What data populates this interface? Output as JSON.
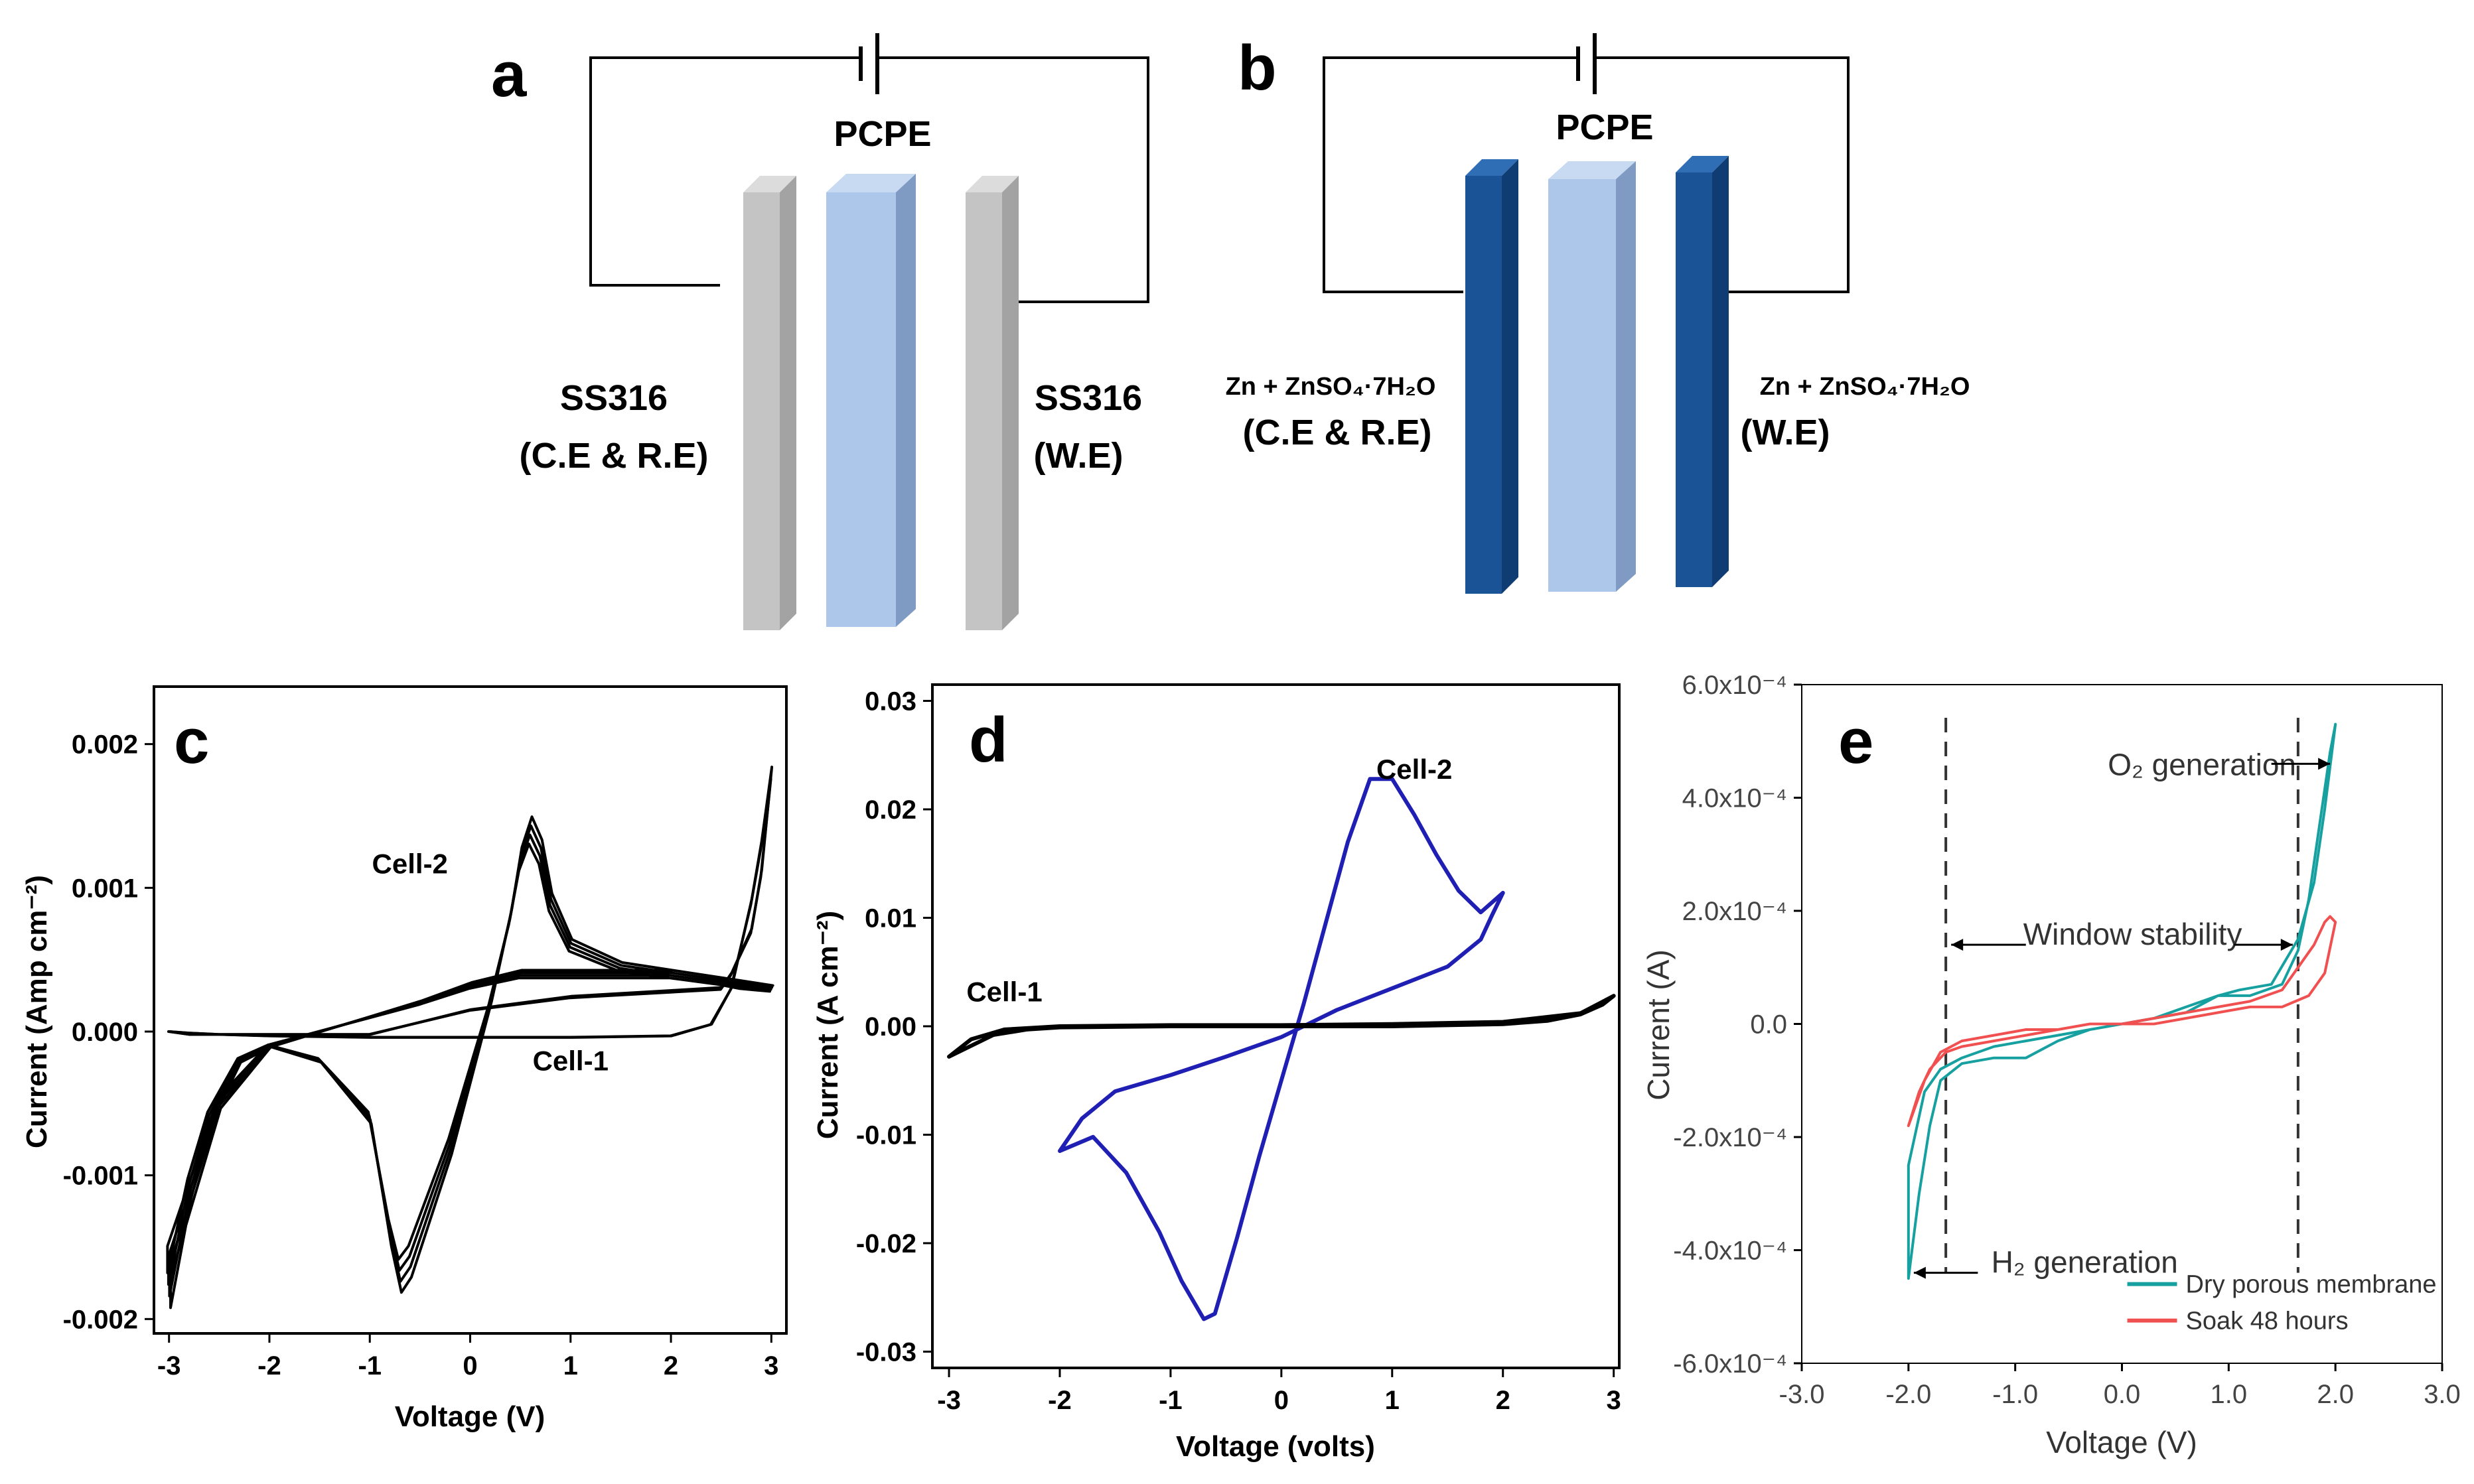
{
  "panels": {
    "a": {
      "letter": "a",
      "electrolyte_label": "PCPE",
      "left_label": [
        "SS316",
        "(C.E & R.E)"
      ],
      "right_label": [
        "SS316",
        "(W.E)"
      ],
      "electrode_color": "#c0c0c0",
      "electrolyte_color": "#a9c4e8"
    },
    "b": {
      "letter": "b",
      "electrolyte_label": "PCPE",
      "left_label": [
        "Zn + ZnSO₄·7H₂O",
        "(C.E & R.E)"
      ],
      "right_label": [
        "Zn + ZnSO₄·7H₂O",
        "(W.E)"
      ],
      "electrode_color": "#1b5496",
      "electrolyte_color": "#a9c4e8"
    }
  },
  "chart_data": [
    {
      "panel": "c",
      "letter": "c",
      "type": "line",
      "title": "",
      "xlabel": "Voltage (V)",
      "ylabel": "Current (Amp cm⁻²)",
      "xlim": [
        -3.15,
        3.15
      ],
      "ylim": [
        -0.0021,
        0.0024
      ],
      "xticks": [
        -3,
        -2,
        -1,
        0,
        1,
        2,
        3
      ],
      "xtick_labels": [
        "-3",
        "-2",
        "-1",
        "0",
        "1",
        "2",
        "3"
      ],
      "yticks": [
        -0.002,
        -0.001,
        0.0,
        0.001,
        0.002
      ],
      "ytick_labels": [
        "-0.002",
        "-0.001",
        "0.000",
        "0.001",
        "0.002"
      ],
      "color": "#000000",
      "annotations": [
        {
          "text": "Cell-2",
          "x": -0.6,
          "y": 0.0011
        },
        {
          "text": "Cell-1",
          "x": 1.0,
          "y": -0.00027
        }
      ],
      "series": [
        {
          "name": "Cell-2",
          "cycles": 4,
          "x": [
            -3.0,
            -2.5,
            -2.0,
            -1.5,
            -1.0,
            -0.8,
            -0.7,
            -0.6,
            -0.4,
            -0.2,
            0.0,
            0.2,
            0.3,
            0.4,
            0.5,
            0.6,
            0.7,
            0.8,
            1.0,
            1.5,
            2.0,
            2.5,
            3.0,
            2.7,
            2.5,
            2.0,
            1.5,
            1.0,
            0.5,
            0.0,
            -0.5,
            -1.0,
            -1.5,
            -2.0,
            -2.3,
            -2.6,
            -2.8,
            -3.0
          ],
          "y": [
            -0.0016,
            -0.0005,
            -0.0001,
            -0.0002,
            -0.0006,
            -0.0014,
            -0.0017,
            -0.0016,
            -0.0012,
            -0.0008,
            -0.0003,
            0.0002,
            0.0005,
            0.0008,
            0.0012,
            0.0014,
            0.00125,
            0.0009,
            0.0006,
            0.00045,
            0.0004,
            0.00035,
            0.0003,
            0.00032,
            0.00035,
            0.0004,
            0.0004,
            0.0004,
            0.0004,
            0.00032,
            0.0002,
            0.0001,
            0.0,
            -0.0001,
            -0.0002,
            -0.0006,
            -0.0011,
            -0.0018
          ]
        },
        {
          "name": "Cell-1",
          "cycles": 2,
          "x": [
            -3.0,
            -2.8,
            -2.5,
            -2.0,
            -1.0,
            0.0,
            1.0,
            2.0,
            2.4,
            2.6,
            2.8,
            2.9,
            3.0,
            2.9,
            2.8,
            2.6,
            2.5,
            2.0,
            1.0,
            0.0,
            -1.0,
            -2.0,
            -2.5,
            -2.8,
            -3.0
          ],
          "y": [
            0.0,
            -2e-05,
            -2e-05,
            -3e-05,
            -4e-05,
            -4e-05,
            -4e-05,
            -3e-05,
            5e-05,
            0.0003,
            0.0009,
            0.0013,
            0.0018,
            0.0011,
            0.0007,
            0.0004,
            0.0003,
            0.00028,
            0.00024,
            0.00015,
            -2e-05,
            -2e-05,
            -2e-05,
            -1e-05,
            0.0
          ]
        }
      ]
    },
    {
      "panel": "d",
      "letter": "d",
      "type": "line",
      "title": "",
      "xlabel": "Voltage (volts)",
      "ylabel": "Current (A cm⁻²)",
      "xlim": [
        -3.15,
        3.05
      ],
      "ylim": [
        -0.0315,
        0.0315
      ],
      "xticks": [
        -3,
        -2,
        -1,
        0,
        1,
        2,
        3
      ],
      "xtick_labels": [
        "-3",
        "-2",
        "-1",
        "0",
        "1",
        "2",
        "3"
      ],
      "yticks": [
        -0.03,
        -0.02,
        -0.01,
        0.0,
        0.01,
        0.02,
        0.03
      ],
      "ytick_labels": [
        "-0.03",
        "-0.02",
        "-0.01",
        "0.00",
        "0.01",
        "0.02",
        "0.03"
      ],
      "annotations": [
        {
          "text": "Cell-2",
          "x": 1.2,
          "y": 0.0228
        },
        {
          "text": "Cell-1",
          "x": -2.5,
          "y": 0.0023
        }
      ],
      "series": [
        {
          "name": "Cell-2",
          "color": "#1f1fb4",
          "x": [
            -2.0,
            -1.7,
            -1.4,
            -1.1,
            -0.9,
            -0.7,
            -0.6,
            -0.4,
            -0.2,
            0.0,
            0.2,
            0.4,
            0.6,
            0.8,
            1.0,
            1.2,
            1.4,
            1.6,
            1.8,
            2.0,
            1.9,
            1.8,
            1.5,
            1.0,
            0.5,
            0.0,
            -0.5,
            -1.0,
            -1.5,
            -1.8,
            -2.0
          ],
          "y": [
            -0.0115,
            -0.0102,
            -0.0135,
            -0.019,
            -0.0235,
            -0.027,
            -0.0265,
            -0.0195,
            -0.012,
            -0.005,
            0.002,
            0.0095,
            0.017,
            0.0228,
            0.0228,
            0.0195,
            0.0158,
            0.0125,
            0.0105,
            0.0123,
            0.0102,
            0.008,
            0.0055,
            0.0035,
            0.0015,
            -0.001,
            -0.0028,
            -0.0045,
            -0.006,
            -0.0085,
            -0.0115
          ]
        },
        {
          "name": "Cell-1",
          "color": "#000000",
          "x": [
            -3.0,
            -2.8,
            -2.6,
            -2.3,
            -2.0,
            -1.0,
            0.0,
            1.0,
            2.0,
            2.4,
            2.7,
            2.9,
            3.0,
            2.7,
            2.0,
            1.0,
            0.0,
            -1.0,
            -2.0,
            -2.5,
            -2.8,
            -3.0
          ],
          "y": [
            -0.0028,
            -0.0018,
            -0.0008,
            -0.0003,
            -0.0001,
            0.0,
            0.0,
            0.0,
            0.0002,
            0.0005,
            0.0011,
            0.002,
            0.0028,
            0.0012,
            0.0004,
            0.0002,
            0.0001,
            0.0001,
            0.0,
            -0.0003,
            -0.0012,
            -0.0028
          ]
        }
      ]
    },
    {
      "panel": "e",
      "letter": "e",
      "type": "line",
      "title": "",
      "xlabel": "Voltage (V)",
      "ylabel": "Current  (A)",
      "xlim": [
        -3.0,
        3.0
      ],
      "ylim": [
        -0.0006,
        0.0006
      ],
      "xticks": [
        -3,
        -2,
        -1,
        0,
        1,
        2,
        3
      ],
      "xtick_labels": [
        "-3.0",
        "-2.0",
        "-1.0",
        "0.0",
        "1.0",
        "2.0",
        "3.0"
      ],
      "yticks": [
        -0.0006,
        -0.0004,
        -0.0002,
        0.0,
        0.0002,
        0.0004,
        0.0006
      ],
      "ytick_labels": [
        "-6.0x10⁻⁴",
        "-4.0x10⁻⁴",
        "-2.0x10⁻⁴",
        "0.0",
        "2.0x10⁻⁴",
        "4.0x10⁻⁴",
        "6.0x10⁻⁴"
      ],
      "dashed_x": [
        -1.65,
        1.65
      ],
      "annotations": [
        {
          "text": "O₂ generation",
          "x": 0.75,
          "y": 0.00044
        },
        {
          "text": "Window stability",
          "x": 0.1,
          "y": 0.00014
        },
        {
          "text": "H₂ generation",
          "x": -0.35,
          "y": -0.00044
        }
      ],
      "legend": {
        "position": "bottom-right",
        "entries": [
          "Dry porous membrane",
          "Soak 48 hours"
        ]
      },
      "series": [
        {
          "name": "Dry porous membrane",
          "color": "#17a0a0",
          "x": [
            -2.0,
            -1.9,
            -1.8,
            -1.7,
            -1.5,
            -1.2,
            -0.9,
            -0.6,
            -0.3,
            0.0,
            0.3,
            0.6,
            0.9,
            1.2,
            1.5,
            1.65,
            1.75,
            1.85,
            1.95,
            2.0,
            1.9,
            1.8,
            1.65,
            1.4,
            1.1,
            0.9,
            0.6,
            0.3,
            0.0,
            -0.3,
            -0.6,
            -0.9,
            -1.2,
            -1.5,
            -1.7,
            -1.85,
            -2.0
          ],
          "y": [
            -0.00045,
            -0.0003,
            -0.00018,
            -0.0001,
            -7e-05,
            -6e-05,
            -6e-05,
            -3e-05,
            -1e-05,
            0.0,
            1e-05,
            3e-05,
            5e-05,
            5e-05,
            7e-05,
            0.00013,
            0.00022,
            0.00035,
            0.00048,
            0.00053,
            0.00038,
            0.00025,
            0.00015,
            7e-05,
            6e-05,
            5e-05,
            2e-05,
            1e-05,
            0.0,
            -1e-05,
            -2e-05,
            -3e-05,
            -4e-05,
            -6e-05,
            -8e-05,
            -0.00012,
            -0.00025
          ]
        },
        {
          "name": "Soak 48 hours",
          "color": "#f05050",
          "x": [
            -2.0,
            -1.9,
            -1.8,
            -1.65,
            -1.5,
            -1.2,
            -0.9,
            -0.6,
            -0.3,
            0.0,
            0.3,
            0.6,
            0.9,
            1.2,
            1.5,
            1.65,
            1.8,
            1.9,
            1.95,
            2.0,
            1.9,
            1.75,
            1.5,
            1.2,
            0.9,
            0.6,
            0.3,
            0.0,
            -0.3,
            -0.6,
            -0.9,
            -1.2,
            -1.5,
            -1.7,
            -1.85,
            -2.0
          ],
          "y": [
            -0.00018,
            -0.00012,
            -8e-05,
            -5e-05,
            -4e-05,
            -3e-05,
            -2e-05,
            -1e-05,
            0.0,
            0.0,
            1e-05,
            2e-05,
            3e-05,
            4e-05,
            6e-05,
            0.0001,
            0.00014,
            0.00018,
            0.00019,
            0.00018,
            9e-05,
            5e-05,
            3e-05,
            3e-05,
            2e-05,
            1e-05,
            0.0,
            0.0,
            0.0,
            -1e-05,
            -1e-05,
            -2e-05,
            -3e-05,
            -5e-05,
            -0.0001,
            -0.00018
          ]
        }
      ]
    }
  ]
}
